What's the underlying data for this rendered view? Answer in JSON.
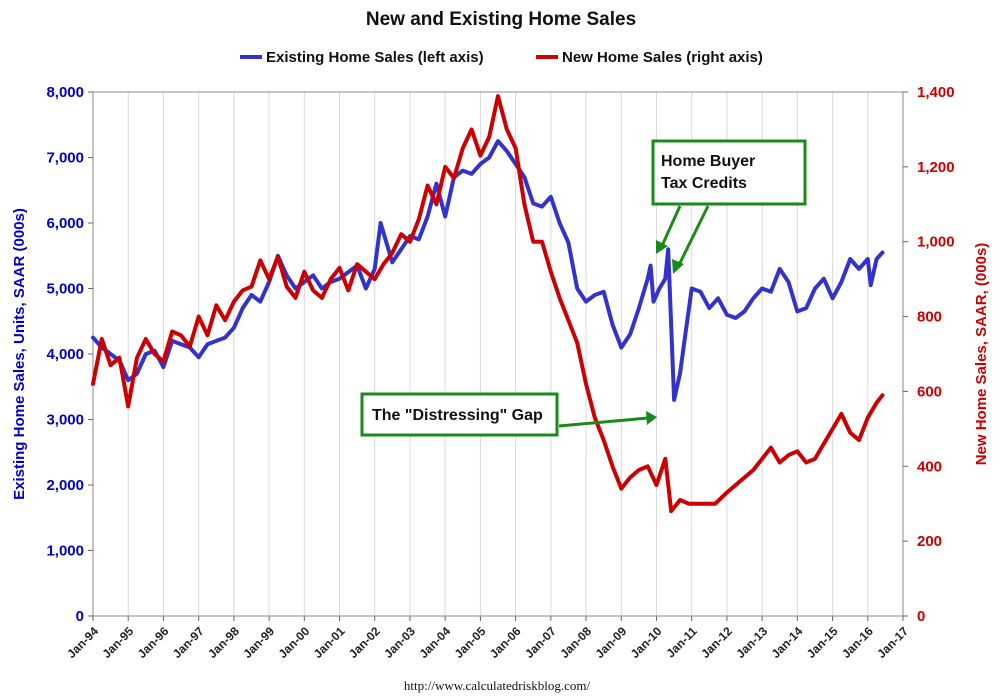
{
  "chart_data": {
    "type": "line",
    "title": "New and Existing Home Sales",
    "source": "http://www.calculatedriskblog.com/",
    "xlabel": "",
    "x_ticks": [
      "Jan-94",
      "Jan-95",
      "Jan-96",
      "Jan-97",
      "Jan-98",
      "Jan-99",
      "Jan-00",
      "Jan-01",
      "Jan-02",
      "Jan-03",
      "Jan-04",
      "Jan-05",
      "Jan-06",
      "Jan-07",
      "Jan-08",
      "Jan-09",
      "Jan-10",
      "Jan-11",
      "Jan-12",
      "Jan-13",
      "Jan-14",
      "Jan-15",
      "Jan-16",
      "Jan-17"
    ],
    "x_range": [
      "Jan-94",
      "Jan-17"
    ],
    "grid": "vertical",
    "legend_position": "top-center",
    "y_left": {
      "label": "Existing Home Sales, Units, SAAR (000s)",
      "range": [
        0,
        8000
      ],
      "ticks": [
        "0",
        "1,000",
        "2,000",
        "3,000",
        "4,000",
        "5,000",
        "6,000",
        "7,000",
        "8,000"
      ],
      "color": "#0000cc"
    },
    "y_right": {
      "label": "New Home Sales, SAAR, (000s)",
      "range": [
        0,
        1400
      ],
      "ticks": [
        "0",
        "200",
        "400",
        "600",
        "800",
        "1,000",
        "1,200",
        "1,400"
      ],
      "color": "#cc0000"
    },
    "series": [
      {
        "name": "Existing Home Sales (left axis)",
        "axis": "left",
        "color": "#3333cc",
        "points": [
          [
            "1994-01",
            4250
          ],
          [
            "1994-04",
            4100
          ],
          [
            "1994-07",
            4000
          ],
          [
            "1994-10",
            3900
          ],
          [
            "1995-01",
            3600
          ],
          [
            "1995-04",
            3700
          ],
          [
            "1995-07",
            4000
          ],
          [
            "1995-10",
            4050
          ],
          [
            "1996-01",
            3800
          ],
          [
            "1996-04",
            4200
          ],
          [
            "1996-07",
            4150
          ],
          [
            "1996-10",
            4100
          ],
          [
            "1997-01",
            3950
          ],
          [
            "1997-04",
            4150
          ],
          [
            "1997-07",
            4200
          ],
          [
            "1997-10",
            4250
          ],
          [
            "1998-01",
            4400
          ],
          [
            "1998-04",
            4700
          ],
          [
            "1998-07",
            4900
          ],
          [
            "1998-10",
            4800
          ],
          [
            "1999-01",
            5100
          ],
          [
            "1999-04",
            5500
          ],
          [
            "1999-07",
            5200
          ],
          [
            "1999-10",
            5000
          ],
          [
            "2000-01",
            5100
          ],
          [
            "2000-04",
            5200
          ],
          [
            "2000-07",
            5000
          ],
          [
            "2000-10",
            5100
          ],
          [
            "2001-01",
            5150
          ],
          [
            "2001-04",
            5250
          ],
          [
            "2001-07",
            5350
          ],
          [
            "2001-10",
            5000
          ],
          [
            "2002-01",
            5300
          ],
          [
            "2002-03",
            6000
          ],
          [
            "2002-07",
            5400
          ],
          [
            "2002-10",
            5600
          ],
          [
            "2003-01",
            5800
          ],
          [
            "2003-04",
            5750
          ],
          [
            "2003-07",
            6100
          ],
          [
            "2003-10",
            6600
          ],
          [
            "2004-01",
            6100
          ],
          [
            "2004-04",
            6700
          ],
          [
            "2004-07",
            6800
          ],
          [
            "2004-10",
            6750
          ],
          [
            "2005-01",
            6900
          ],
          [
            "2005-04",
            7000
          ],
          [
            "2005-07",
            7250
          ],
          [
            "2005-10",
            7100
          ],
          [
            "2006-01",
            6900
          ],
          [
            "2006-04",
            6700
          ],
          [
            "2006-07",
            6300
          ],
          [
            "2006-10",
            6250
          ],
          [
            "2007-01",
            6400
          ],
          [
            "2007-04",
            6000
          ],
          [
            "2007-07",
            5700
          ],
          [
            "2007-10",
            5000
          ],
          [
            "2008-01",
            4800
          ],
          [
            "2008-04",
            4900
          ],
          [
            "2008-07",
            4950
          ],
          [
            "2008-10",
            4450
          ],
          [
            "2009-01",
            4100
          ],
          [
            "2009-04",
            4300
          ],
          [
            "2009-07",
            4700
          ],
          [
            "2009-10",
            5150
          ],
          [
            "2009-11",
            5350
          ],
          [
            "2009-12",
            4800
          ],
          [
            "2010-02",
            5000
          ],
          [
            "2010-04",
            5150
          ],
          [
            "2010-05",
            5600
          ],
          [
            "2010-07",
            3300
          ],
          [
            "2010-09",
            3700
          ],
          [
            "2010-11",
            4350
          ],
          [
            "2011-01",
            5000
          ],
          [
            "2011-04",
            4950
          ],
          [
            "2011-07",
            4700
          ],
          [
            "2011-10",
            4850
          ],
          [
            "2012-01",
            4600
          ],
          [
            "2012-04",
            4550
          ],
          [
            "2012-07",
            4650
          ],
          [
            "2012-10",
            4850
          ],
          [
            "2013-01",
            5000
          ],
          [
            "2013-04",
            4950
          ],
          [
            "2013-07",
            5300
          ],
          [
            "2013-10",
            5100
          ],
          [
            "2014-01",
            4650
          ],
          [
            "2014-04",
            4700
          ],
          [
            "2014-07",
            5000
          ],
          [
            "2014-10",
            5150
          ],
          [
            "2015-01",
            4850
          ],
          [
            "2015-04",
            5100
          ],
          [
            "2015-07",
            5450
          ],
          [
            "2015-10",
            5300
          ],
          [
            "2016-01",
            5450
          ],
          [
            "2016-02",
            5050
          ],
          [
            "2016-04",
            5450
          ],
          [
            "2016-06",
            5550
          ]
        ]
      },
      {
        "name": "New Home Sales (right axis)",
        "axis": "right",
        "color": "#cc0000",
        "points": [
          [
            "1994-01",
            620
          ],
          [
            "1994-04",
            740
          ],
          [
            "1994-07",
            670
          ],
          [
            "1994-10",
            690
          ],
          [
            "1995-01",
            560
          ],
          [
            "1995-04",
            690
          ],
          [
            "1995-07",
            740
          ],
          [
            "1995-10",
            700
          ],
          [
            "1996-01",
            680
          ],
          [
            "1996-04",
            760
          ],
          [
            "1996-07",
            750
          ],
          [
            "1996-10",
            720
          ],
          [
            "1997-01",
            800
          ],
          [
            "1997-04",
            750
          ],
          [
            "1997-07",
            830
          ],
          [
            "1997-10",
            790
          ],
          [
            "1998-01",
            840
          ],
          [
            "1998-04",
            870
          ],
          [
            "1998-07",
            880
          ],
          [
            "1998-10",
            950
          ],
          [
            "1999-01",
            900
          ],
          [
            "1999-04",
            960
          ],
          [
            "1999-07",
            880
          ],
          [
            "1999-10",
            850
          ],
          [
            "2000-01",
            920
          ],
          [
            "2000-04",
            870
          ],
          [
            "2000-07",
            850
          ],
          [
            "2000-10",
            900
          ],
          [
            "2001-01",
            930
          ],
          [
            "2001-04",
            870
          ],
          [
            "2001-07",
            940
          ],
          [
            "2001-10",
            920
          ],
          [
            "2002-01",
            900
          ],
          [
            "2002-04",
            940
          ],
          [
            "2002-07",
            970
          ],
          [
            "2002-10",
            1020
          ],
          [
            "2003-01",
            1000
          ],
          [
            "2003-04",
            1060
          ],
          [
            "2003-07",
            1150
          ],
          [
            "2003-10",
            1100
          ],
          [
            "2004-01",
            1200
          ],
          [
            "2004-04",
            1170
          ],
          [
            "2004-07",
            1250
          ],
          [
            "2004-10",
            1300
          ],
          [
            "2005-01",
            1230
          ],
          [
            "2005-04",
            1280
          ],
          [
            "2005-07",
            1389
          ],
          [
            "2005-10",
            1300
          ],
          [
            "2006-01",
            1250
          ],
          [
            "2006-04",
            1100
          ],
          [
            "2006-07",
            1000
          ],
          [
            "2006-10",
            1000
          ],
          [
            "2007-01",
            920
          ],
          [
            "2007-04",
            850
          ],
          [
            "2007-07",
            790
          ],
          [
            "2007-10",
            730
          ],
          [
            "2008-01",
            620
          ],
          [
            "2008-04",
            530
          ],
          [
            "2008-07",
            470
          ],
          [
            "2008-10",
            400
          ],
          [
            "2009-01",
            340
          ],
          [
            "2009-04",
            370
          ],
          [
            "2009-07",
            390
          ],
          [
            "2009-10",
            400
          ],
          [
            "2010-01",
            350
          ],
          [
            "2010-04",
            420
          ],
          [
            "2010-06",
            280
          ],
          [
            "2010-09",
            310
          ],
          [
            "2010-12",
            300
          ],
          [
            "2011-03",
            300
          ],
          [
            "2011-06",
            300
          ],
          [
            "2011-09",
            300
          ],
          [
            "2012-01",
            330
          ],
          [
            "2012-04",
            350
          ],
          [
            "2012-07",
            370
          ],
          [
            "2012-10",
            390
          ],
          [
            "2013-01",
            420
          ],
          [
            "2013-04",
            450
          ],
          [
            "2013-07",
            410
          ],
          [
            "2013-10",
            430
          ],
          [
            "2014-01",
            440
          ],
          [
            "2014-04",
            410
          ],
          [
            "2014-07",
            420
          ],
          [
            "2014-10",
            460
          ],
          [
            "2015-01",
            500
          ],
          [
            "2015-04",
            540
          ],
          [
            "2015-07",
            490
          ],
          [
            "2015-10",
            470
          ],
          [
            "2016-01",
            530
          ],
          [
            "2016-04",
            570
          ],
          [
            "2016-06",
            590
          ]
        ]
      }
    ],
    "annotations": [
      {
        "text": "Home Buyer\nTax Credits",
        "color": "#1a8a1a"
      },
      {
        "text": "The \"Distressing\" Gap",
        "color": "#1a8a1a"
      }
    ]
  }
}
